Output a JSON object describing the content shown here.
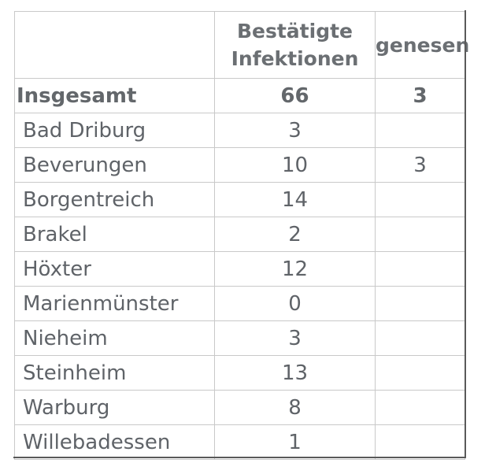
{
  "table": {
    "headers": [
      "",
      "Bestätigte Infektionen",
      "genesen"
    ],
    "total": {
      "name": "Insgesamt",
      "infections": "66",
      "recovered": "3"
    },
    "rows": [
      {
        "name": "Bad Driburg",
        "infections": "3",
        "recovered": ""
      },
      {
        "name": "Beverungen",
        "infections": "10",
        "recovered": "3"
      },
      {
        "name": "Borgentreich",
        "infections": "14",
        "recovered": ""
      },
      {
        "name": "Brakel",
        "infections": "2",
        "recovered": ""
      },
      {
        "name": "Höxter",
        "infections": "12",
        "recovered": ""
      },
      {
        "name": "Marienmünster",
        "infections": "0",
        "recovered": ""
      },
      {
        "name": "Nieheim",
        "infections": "3",
        "recovered": ""
      },
      {
        "name": "Steinheim",
        "infections": "13",
        "recovered": ""
      },
      {
        "name": "Warburg",
        "infections": "8",
        "recovered": ""
      },
      {
        "name": "Willebadessen",
        "infections": "1",
        "recovered": ""
      }
    ]
  }
}
